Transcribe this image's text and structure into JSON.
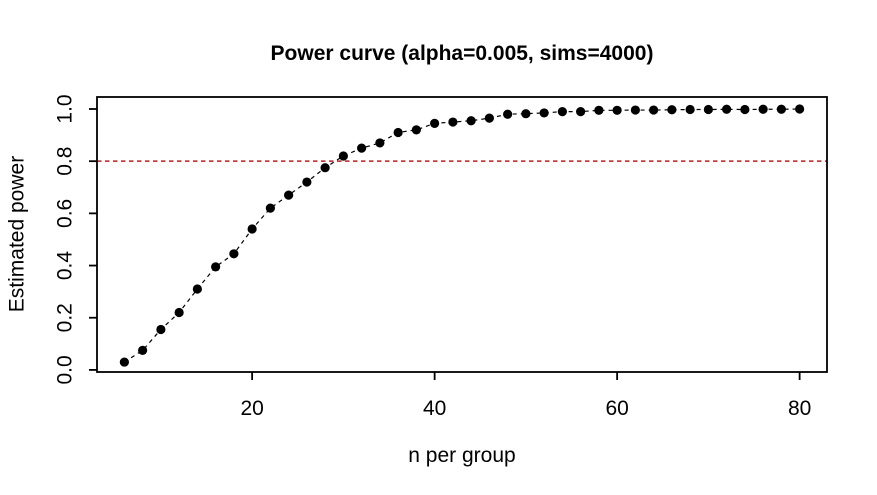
{
  "chart_data": {
    "type": "line",
    "title": "Power curve (alpha=0.005, sims=4000)",
    "xlabel": "n per group",
    "ylabel": "Estimated power",
    "marker": "filled-circle",
    "marker_color": "#000000",
    "line_style": "dashed",
    "line_color": "#000000",
    "xlim": [
      3,
      83
    ],
    "ylim": [
      -0.008,
      1.046
    ],
    "x_ticks": [
      "20",
      "40",
      "60",
      "80"
    ],
    "y_ticks": [
      "0.0",
      "0.2",
      "0.4",
      "0.6",
      "0.8",
      "1.0"
    ],
    "grid": false,
    "legend": null,
    "x": [
      6,
      8,
      10,
      12,
      14,
      16,
      18,
      20,
      22,
      24,
      26,
      28,
      30,
      32,
      34,
      36,
      38,
      40,
      42,
      44,
      46,
      48,
      50,
      52,
      54,
      56,
      58,
      60,
      62,
      64,
      66,
      68,
      70,
      72,
      74,
      76,
      78,
      80
    ],
    "y": [
      0.03,
      0.075,
      0.155,
      0.22,
      0.31,
      0.395,
      0.445,
      0.54,
      0.62,
      0.67,
      0.72,
      0.775,
      0.82,
      0.85,
      0.87,
      0.91,
      0.92,
      0.945,
      0.95,
      0.955,
      0.965,
      0.98,
      0.982,
      0.985,
      0.99,
      0.99,
      0.995,
      0.995,
      0.996,
      0.996,
      0.997,
      0.998,
      0.998,
      0.999,
      0.998,
      0.999,
      0.999,
      1.0
    ],
    "reference_line": {
      "y": 0.8,
      "color": "#B22222",
      "style": "dashed"
    }
  }
}
